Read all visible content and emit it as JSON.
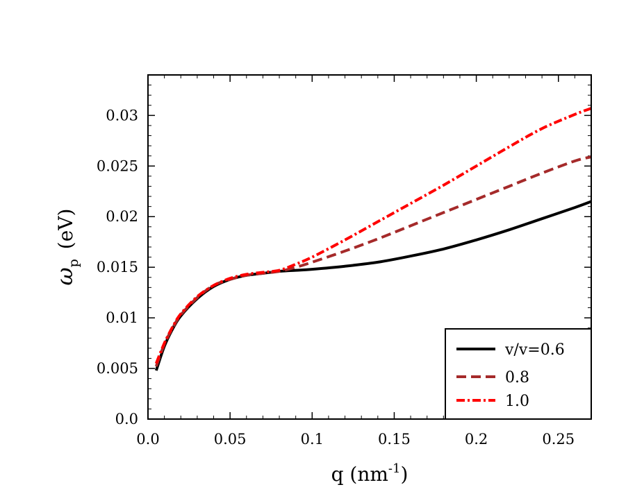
{
  "chart_data": {
    "type": "line",
    "xlabel": "q (nm",
    "xlabel_sup": "-1",
    "xlabel_close": ")",
    "ylabel_symbol": "ω",
    "ylabel_sub": "p",
    "ylabel_unit": "(eV)",
    "xlim": [
      0,
      0.27
    ],
    "ylim": [
      0,
      0.034
    ],
    "x_ticks": [
      0,
      0.05,
      0.1,
      0.15,
      0.2,
      0.25
    ],
    "x_tick_labels": [
      "0.0",
      "0.05",
      "0.1",
      "0.15",
      "0.2",
      "0.25"
    ],
    "y_ticks": [
      0,
      0.005,
      0.01,
      0.015,
      0.02,
      0.025,
      0.03
    ],
    "y_tick_labels": [
      "0.0",
      "0.005",
      "0.01",
      "0.015",
      "0.02",
      "0.025",
      "0.03"
    ],
    "grid": false,
    "legend_position": "bottom-right",
    "series": [
      {
        "name": "v/v=0.6",
        "color": "#000000",
        "dash": "solid",
        "x": [
          0.005,
          0.01,
          0.015,
          0.02,
          0.03,
          0.04,
          0.05,
          0.06,
          0.07,
          0.08,
          0.09,
          0.1,
          0.12,
          0.14,
          0.16,
          0.18,
          0.2,
          0.22,
          0.24,
          0.26,
          0.27
        ],
        "y": [
          0.0048,
          0.0072,
          0.0089,
          0.0102,
          0.0119,
          0.0131,
          0.0138,
          0.0142,
          0.0144,
          0.0146,
          0.0147,
          0.0148,
          0.0151,
          0.0155,
          0.0161,
          0.0168,
          0.0177,
          0.0187,
          0.0198,
          0.0209,
          0.0215
        ]
      },
      {
        "name": "0.8",
        "color": "#a52a2a",
        "dash": "dashed",
        "x": [
          0.005,
          0.01,
          0.015,
          0.02,
          0.03,
          0.04,
          0.05,
          0.06,
          0.07,
          0.08,
          0.09,
          0.1,
          0.12,
          0.14,
          0.16,
          0.18,
          0.2,
          0.22,
          0.24,
          0.26,
          0.27
        ],
        "y": [
          0.0052,
          0.0074,
          0.009,
          0.0103,
          0.012,
          0.0132,
          0.0138,
          0.0142,
          0.0144,
          0.0146,
          0.015,
          0.0155,
          0.0166,
          0.0178,
          0.0191,
          0.0204,
          0.0217,
          0.023,
          0.0243,
          0.0255,
          0.0259
        ]
      },
      {
        "name": "1.0",
        "color": "#ff0000",
        "dash": "dashdot",
        "x": [
          0.005,
          0.01,
          0.015,
          0.02,
          0.03,
          0.04,
          0.05,
          0.06,
          0.07,
          0.08,
          0.09,
          0.1,
          0.12,
          0.14,
          0.16,
          0.18,
          0.2,
          0.22,
          0.24,
          0.26,
          0.27
        ],
        "y": [
          0.0055,
          0.0075,
          0.0091,
          0.0104,
          0.0121,
          0.0132,
          0.0139,
          0.0143,
          0.0145,
          0.0147,
          0.0153,
          0.016,
          0.0177,
          0.0195,
          0.0213,
          0.0231,
          0.025,
          0.0269,
          0.0287,
          0.0301,
          0.0307
        ]
      }
    ]
  }
}
